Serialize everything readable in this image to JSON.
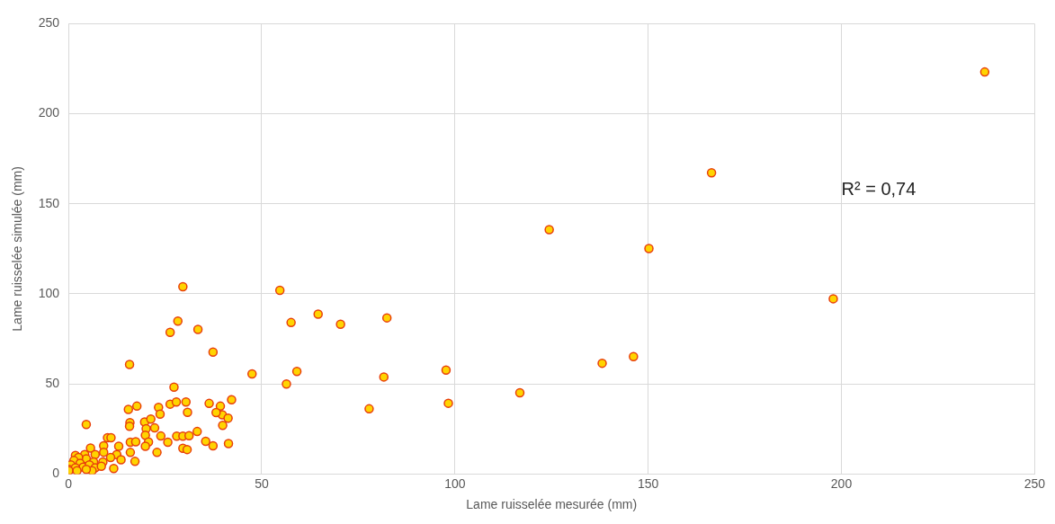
{
  "chart_data": {
    "type": "scatter",
    "xlabel": "Lame ruisselée mesurée (mm)",
    "ylabel": "Lame ruisselée simulée (mm)",
    "annotations": [
      "R² = 0,74"
    ],
    "xlim": [
      0,
      250
    ],
    "ylim": [
      0,
      250
    ],
    "xticks": [
      0,
      50,
      100,
      150,
      200,
      250
    ],
    "yticks": [
      0,
      50,
      100,
      150,
      200,
      250
    ],
    "grid": true,
    "legend": false,
    "marker": "circle",
    "series": [
      {
        "color": "#ffd400",
        "x": [
          237.1,
          166.4,
          124.4,
          150.2,
          197.9,
          146.2,
          138.1,
          116.8,
          97.7,
          98.3,
          81.6,
          77.8,
          82.4,
          70.4,
          64.6,
          57.6,
          54.7,
          59.1,
          56.4,
          47.5,
          29.6,
          28.3,
          26.3,
          33.5,
          37.4,
          15.8,
          27.3,
          15.5,
          17.7,
          23.3,
          26.3,
          27.9,
          30.4,
          36.4,
          39.3,
          42.2,
          4.6,
          23.7,
          30.8,
          39.8,
          38.2,
          41.3,
          39.9,
          41.4,
          15.9,
          15.8,
          19.7,
          21.3,
          20.1,
          22.3,
          19.9,
          20.7,
          19.9,
          23.9,
          25.7,
          28,
          29.6,
          31.2,
          33.3,
          35.5,
          37.4,
          29.6,
          30.7,
          22.9,
          17.2,
          11.7,
          16,
          17.4,
          16,
          10.1,
          11,
          5.7,
          13,
          9.1,
          9.1,
          6.9,
          4.2,
          1.8,
          12.5,
          10.9,
          13.6,
          4.6,
          6.5,
          8.9,
          2.6,
          1.4,
          0.6,
          0.2,
          3,
          3.8,
          5.4,
          6.9,
          8.5,
          1.8,
          0.1,
          2.2,
          6.1,
          4.6
        ],
        "values": [
          223.2,
          167.2,
          135.7,
          125.2,
          97.3,
          65.2,
          61.5,
          45.1,
          57.7,
          39.3,
          53.9,
          36.2,
          86.7,
          83.2,
          88.8,
          84.1,
          102,
          57,
          50,
          55.6,
          104,
          84.9,
          78.7,
          80.3,
          67.7,
          60.8,
          48.2,
          35.9,
          37.7,
          37,
          38.8,
          40,
          40,
          39.2,
          37.7,
          41.2,
          27.5,
          33.3,
          34.3,
          32.9,
          34.1,
          31,
          27,
          16.9,
          28.5,
          26.5,
          28.9,
          30.5,
          25.2,
          25.6,
          21.5,
          17.8,
          15.4,
          21.1,
          17.7,
          21,
          21,
          21.3,
          23.6,
          18.2,
          15.7,
          14.3,
          13.6,
          12,
          7,
          3.1,
          17.7,
          17.9,
          12,
          20.2,
          20.2,
          14.4,
          15.4,
          15.7,
          12.1,
          10.8,
          10.8,
          10.3,
          10.8,
          9.2,
          7.9,
          8.4,
          6.7,
          6.7,
          9.2,
          7.5,
          5.1,
          2.6,
          5.9,
          3.8,
          5.1,
          3.4,
          4.3,
          3.4,
          1.8,
          1.8,
          1.8,
          2.6
        ]
      }
    ]
  }
}
